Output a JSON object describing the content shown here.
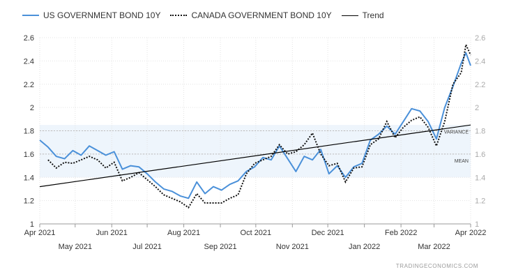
{
  "chart_data": {
    "type": "line",
    "title": "",
    "xlabel": "",
    "ylabel": "",
    "ylim": [
      1,
      2.6
    ],
    "yticks": [
      1,
      1.2,
      1.4,
      1.6,
      1.8,
      2,
      2.2,
      2.4,
      2.6
    ],
    "grid": true,
    "legend_position": "top-left",
    "xticks_top": [
      "Apr 2021",
      "Jun 2021",
      "Aug 2021",
      "Oct 2021",
      "Dec 2021",
      "Feb 2022",
      "Apr 2022"
    ],
    "xticks_bottom": [
      "May 2021",
      "Jul 2021",
      "Sep 2021",
      "Nov 2021",
      "Jan 2022",
      "Mar 2022"
    ],
    "band": {
      "from": 1.4,
      "to": 1.85,
      "color": "#eef5fc"
    },
    "reference_lines": [
      {
        "label": "VARIANCE",
        "value": 1.8
      },
      {
        "label": "MEAN",
        "value": 1.6
      }
    ],
    "series": [
      {
        "name": "US GOVERNMENT BOND 10Y",
        "color": "#4a90d9",
        "style": "solid",
        "x": [
          "2021-04-01",
          "2021-04-08",
          "2021-04-15",
          "2021-04-22",
          "2021-04-29",
          "2021-05-06",
          "2021-05-13",
          "2021-05-20",
          "2021-05-27",
          "2021-06-03",
          "2021-06-10",
          "2021-06-17",
          "2021-06-24",
          "2021-07-01",
          "2021-07-08",
          "2021-07-15",
          "2021-07-22",
          "2021-07-29",
          "2021-08-05",
          "2021-08-12",
          "2021-08-19",
          "2021-08-26",
          "2021-09-02",
          "2021-09-09",
          "2021-09-16",
          "2021-09-23",
          "2021-09-30",
          "2021-10-07",
          "2021-10-14",
          "2021-10-21",
          "2021-10-28",
          "2021-11-04",
          "2021-11-11",
          "2021-11-18",
          "2021-11-25",
          "2021-12-02",
          "2021-12-09",
          "2021-12-16",
          "2021-12-23",
          "2021-12-30",
          "2022-01-06",
          "2022-01-13",
          "2022-01-20",
          "2022-01-27",
          "2022-02-03",
          "2022-02-10",
          "2022-02-17",
          "2022-02-24",
          "2022-03-03",
          "2022-03-10",
          "2022-03-17",
          "2022-03-24",
          "2022-03-28",
          "2022-04-01"
        ],
        "values": [
          1.72,
          1.66,
          1.58,
          1.56,
          1.63,
          1.59,
          1.67,
          1.63,
          1.59,
          1.62,
          1.47,
          1.5,
          1.49,
          1.43,
          1.36,
          1.3,
          1.28,
          1.24,
          1.22,
          1.36,
          1.26,
          1.32,
          1.29,
          1.34,
          1.37,
          1.45,
          1.49,
          1.57,
          1.55,
          1.67,
          1.56,
          1.45,
          1.58,
          1.55,
          1.64,
          1.43,
          1.5,
          1.4,
          1.49,
          1.52,
          1.72,
          1.77,
          1.84,
          1.77,
          1.88,
          1.99,
          1.97,
          1.88,
          1.73,
          2.0,
          2.18,
          2.38,
          2.47,
          2.36
        ]
      },
      {
        "name": "CANADA GOVERNMENT BOND 10Y",
        "color": "#111111",
        "style": "dotted",
        "x": [
          "2021-04-08",
          "2021-04-15",
          "2021-04-22",
          "2021-04-29",
          "2021-05-06",
          "2021-05-13",
          "2021-05-20",
          "2021-05-27",
          "2021-06-03",
          "2021-06-10",
          "2021-06-17",
          "2021-06-24",
          "2021-07-01",
          "2021-07-08",
          "2021-07-15",
          "2021-07-22",
          "2021-07-29",
          "2021-08-05",
          "2021-08-12",
          "2021-08-19",
          "2021-08-26",
          "2021-09-02",
          "2021-09-09",
          "2021-09-16",
          "2021-09-23",
          "2021-09-30",
          "2021-10-07",
          "2021-10-14",
          "2021-10-21",
          "2021-10-28",
          "2021-11-04",
          "2021-11-11",
          "2021-11-18",
          "2021-11-25",
          "2021-12-02",
          "2021-12-09",
          "2021-12-16",
          "2021-12-23",
          "2021-12-30",
          "2022-01-06",
          "2022-01-13",
          "2022-01-20",
          "2022-01-27",
          "2022-02-03",
          "2022-02-10",
          "2022-02-17",
          "2022-02-24",
          "2022-03-03",
          "2022-03-10",
          "2022-03-17",
          "2022-03-24",
          "2022-03-28",
          "2022-04-01"
        ],
        "values": [
          1.55,
          1.48,
          1.53,
          1.52,
          1.55,
          1.58,
          1.55,
          1.48,
          1.53,
          1.37,
          1.4,
          1.44,
          1.38,
          1.32,
          1.25,
          1.22,
          1.19,
          1.14,
          1.26,
          1.18,
          1.18,
          1.18,
          1.22,
          1.25,
          1.43,
          1.52,
          1.55,
          1.58,
          1.68,
          1.6,
          1.62,
          1.68,
          1.78,
          1.6,
          1.5,
          1.52,
          1.36,
          1.48,
          1.49,
          1.68,
          1.73,
          1.88,
          1.74,
          1.83,
          1.89,
          1.92,
          1.83,
          1.67,
          1.88,
          2.2,
          2.3,
          2.54,
          2.45
        ]
      },
      {
        "name": "Trend",
        "color": "#000000",
        "style": "solid",
        "x": [
          "2021-04-01",
          "2022-04-01"
        ],
        "values": [
          1.32,
          1.85
        ]
      }
    ]
  },
  "footer": {
    "source": "TRADINGECONOMICS.COM"
  }
}
